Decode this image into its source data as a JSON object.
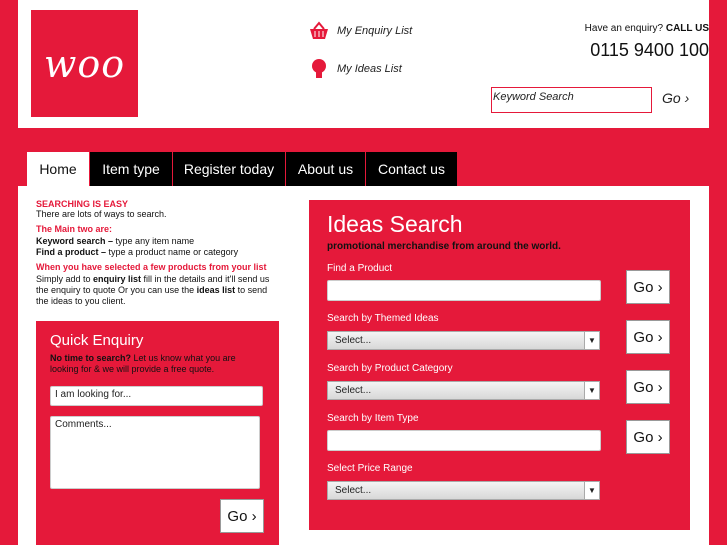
{
  "colors": {
    "brand_red": "#e5193a",
    "nav_bg": "#000000"
  },
  "header": {
    "logo_text": "woo",
    "enquiry_list": "My Enquiry List",
    "ideas_list": "My Ideas List",
    "enquiry_icon": "basket-icon",
    "ideas_icon": "lightbulb-icon",
    "call_prefix": "Have an enquiry?",
    "call_strong": "CALL US",
    "phone": "0115 9400 100",
    "keyword_value": "Keyword Search",
    "go": "Go ›"
  },
  "nav": [
    {
      "label": "Home"
    },
    {
      "label": "Item type"
    },
    {
      "label": "Register today"
    },
    {
      "label": "About us"
    },
    {
      "label": "Contact us"
    }
  ],
  "intro": {
    "h1": "SEARCHING IS EASY",
    "p1": "There are lots of ways to search.",
    "h2": "The Main two are:",
    "kw_strong": "Keyword search –",
    "kw_text": " type any item name",
    "fp_strong": "Find a product –",
    "fp_text": " type a product name or category",
    "h3": "When you have selected a few products from your list",
    "p3a": "Simply add to ",
    "p3b": "enquiry list",
    "p3c": " fill in the details and it'll send us the enquiry to quote Or you can use the ",
    "p3d": "ideas list",
    "p3e": " to send the ideas to you client."
  },
  "quick": {
    "title": "Quick Enquiry",
    "strong": "No time to search?",
    "text": " Let us know what you are looking for & we will provide a free quote.",
    "looking_value": "I am looking for...",
    "comments_value": "Comments...",
    "go": "Go ›"
  },
  "ideas": {
    "title": "Ideas Search",
    "subtitle": "promotional merchandise from around the world.",
    "fields": [
      {
        "label": "Find a Product",
        "value": "",
        "go": "Go ›"
      },
      {
        "label": "Search by Themed Ideas",
        "value": "Select...",
        "go": "Go ›"
      },
      {
        "label": "Search by Product Category",
        "value": "Select...",
        "go": "Go ›"
      },
      {
        "label": "Search by Item Type",
        "value": "",
        "go": "Go ›"
      },
      {
        "label": "Select Price Range",
        "value": "Select..."
      }
    ]
  }
}
